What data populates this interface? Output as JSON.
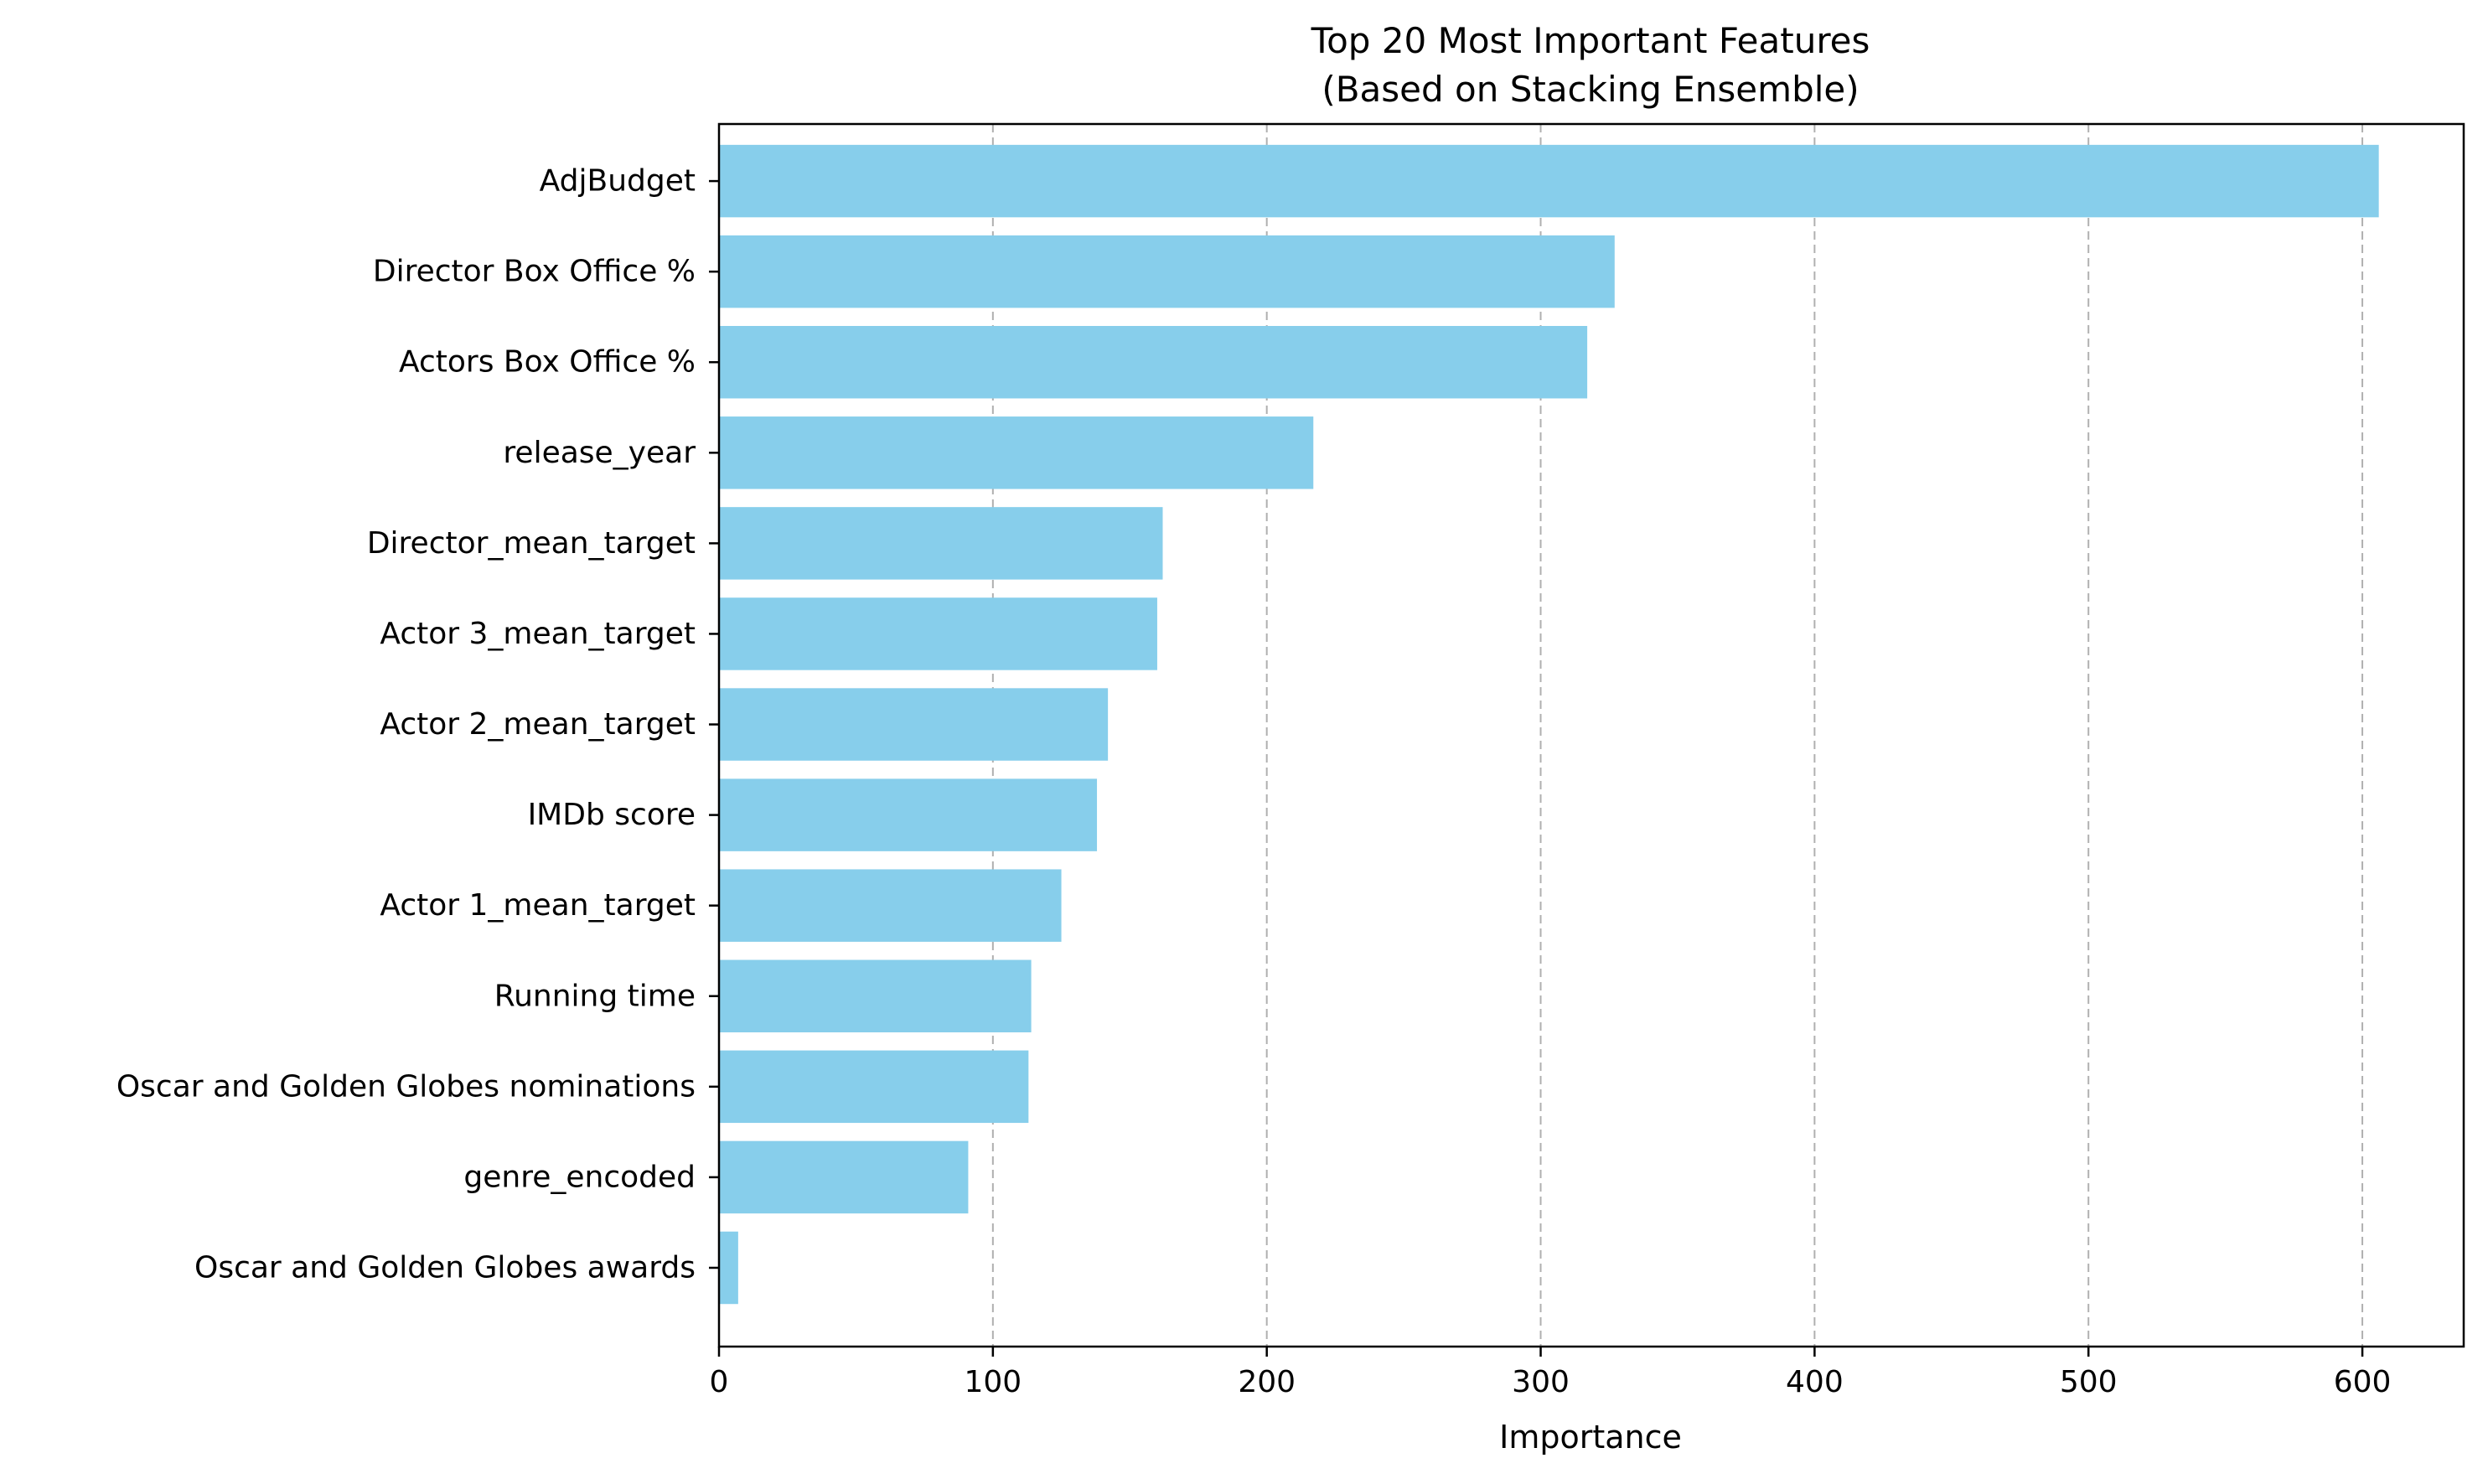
{
  "chart_data": {
    "type": "bar",
    "orientation": "horizontal",
    "title": "Top 20 Most Important Features\n(Based on Stacking Ensemble)",
    "title_lines": [
      "Top 20 Most Important Features",
      "(Based on Stacking Ensemble)"
    ],
    "xlabel": "Importance",
    "ylabel": "",
    "xlim": [
      0,
      637
    ],
    "xticks": [
      0,
      100,
      200,
      300,
      400,
      500,
      600
    ],
    "xtick_labels": [
      "0",
      "100",
      "200",
      "300",
      "400",
      "500",
      "600"
    ],
    "grid": "vertical-dashed",
    "legend": "none",
    "bar_color": "#87ceeb",
    "grid_color": "#b0b0b0",
    "categories": [
      "AdjBudget",
      "Director Box Office %",
      "Actors Box Office %",
      "release_year",
      "Director_mean_target",
      "Actor 3_mean_target",
      "Actor 2_mean_target",
      "IMDb score",
      "Actor 1_mean_target",
      "Running time",
      "Oscar and Golden Globes nominations",
      "genre_encoded",
      "Oscar and Golden Globes awards"
    ],
    "values": [
      606,
      327,
      317,
      217,
      162,
      160,
      142,
      138,
      125,
      114,
      113,
      91,
      7
    ]
  }
}
